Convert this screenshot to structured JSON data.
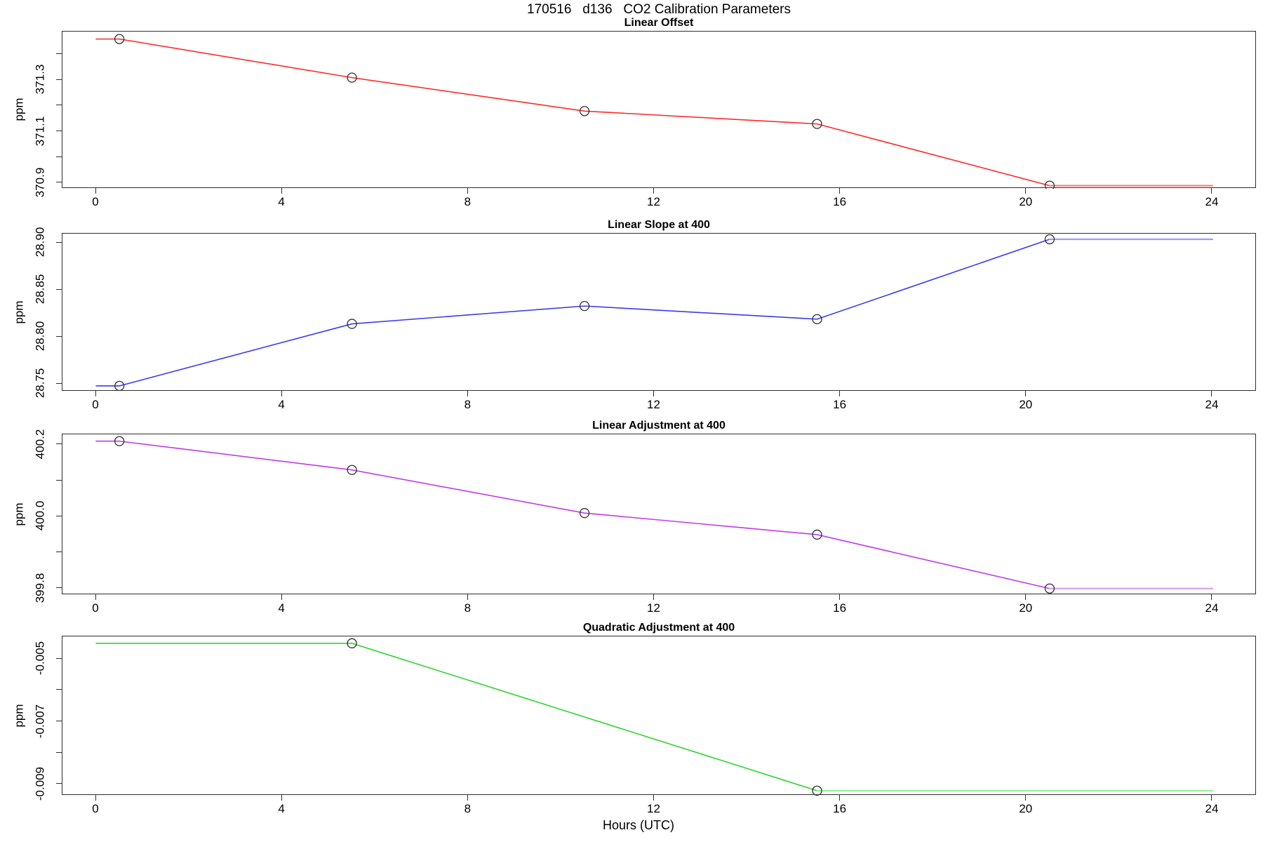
{
  "header": {
    "title": "170516   d136   CO2 Calibration Parameters"
  },
  "axes": {
    "xlabel": "Hours (UTC)",
    "ylabel": "ppm",
    "xlim": [
      0,
      24
    ],
    "x_tick_hours": [
      0,
      4,
      8,
      12,
      16,
      20,
      24
    ],
    "x_tick_labels": [
      "0",
      "4",
      "8",
      "12",
      "16",
      "20",
      "24"
    ]
  },
  "chart_data": [
    {
      "type": "line",
      "title": "Linear Offset",
      "series_name": "linear-offset",
      "unit": "ppm",
      "color": "#ff2a2a",
      "tail_color": "#ff7d7d",
      "marker": "open-circle",
      "x": [
        0.5,
        5.5,
        10.5,
        15.5,
        20.5
      ],
      "y": [
        371.46,
        371.31,
        371.18,
        371.13,
        370.89
      ],
      "lead_from_hour": 0,
      "tail_to_hour": 24,
      "ylim": [
        370.878,
        371.489
      ],
      "y_ticks": [
        {
          "v": 371.4,
          "label": ""
        },
        {
          "v": 371.3,
          "label": "371.3"
        },
        {
          "v": 371.2,
          "label": ""
        },
        {
          "v": 371.1,
          "label": "371.1"
        },
        {
          "v": 371.0,
          "label": ""
        },
        {
          "v": 370.9,
          "label": "370.9"
        }
      ]
    },
    {
      "type": "line",
      "title": "Linear Slope at 400",
      "series_name": "linear-slope-at-400",
      "unit": "ppm",
      "color": "#3a3af0",
      "tail_color": "#9a9aff",
      "marker": "open-circle",
      "x": [
        0.5,
        5.5,
        10.5,
        15.5,
        20.5
      ],
      "y": [
        28.748,
        28.814,
        28.833,
        28.819,
        28.904
      ],
      "lead_from_hour": 0,
      "tail_to_hour": 24,
      "ylim": [
        28.742,
        28.91
      ],
      "y_ticks": [
        {
          "v": 28.9,
          "label": "28.90"
        },
        {
          "v": 28.85,
          "label": "28.85"
        },
        {
          "v": 28.8,
          "label": "28.80"
        },
        {
          "v": 28.75,
          "label": "28.75"
        }
      ]
    },
    {
      "type": "line",
      "title": "Linear Adjustment at 400",
      "series_name": "linear-adjustment-at-400",
      "unit": "ppm",
      "color": "#c23ae8",
      "tail_color": "#dd9df2",
      "marker": "open-circle",
      "x": [
        0.5,
        5.5,
        10.5,
        15.5,
        20.5
      ],
      "y": [
        400.21,
        400.13,
        400.01,
        399.95,
        399.8
      ],
      "lead_from_hour": 0,
      "tail_to_hour": 24,
      "ylim": [
        399.782,
        400.229
      ],
      "y_ticks": [
        {
          "v": 400.2,
          "label": "400.2"
        },
        {
          "v": 400.1,
          "label": ""
        },
        {
          "v": 400.0,
          "label": "400.0"
        },
        {
          "v": 399.9,
          "label": ""
        },
        {
          "v": 399.8,
          "label": "399.8"
        }
      ]
    },
    {
      "type": "line",
      "title": "Quadratic Adjustment at 400",
      "series_name": "quadratic-adjustment-at-400",
      "unit": "ppm",
      "color": "#2fd42f",
      "tail_color": "#9aef9a",
      "marker": "open-circle",
      "x": [
        5.5,
        15.5
      ],
      "y": [
        -0.0045,
        -0.0092
      ],
      "lead_from_hour": 0,
      "tail_to_hour": 24,
      "ylim": [
        -0.00936,
        -0.00428
      ],
      "y_ticks": [
        {
          "v": -0.005,
          "label": "-0.005"
        },
        {
          "v": -0.006,
          "label": ""
        },
        {
          "v": -0.007,
          "label": "-0.007"
        },
        {
          "v": -0.008,
          "label": ""
        },
        {
          "v": -0.009,
          "label": "-0.009"
        }
      ]
    }
  ]
}
